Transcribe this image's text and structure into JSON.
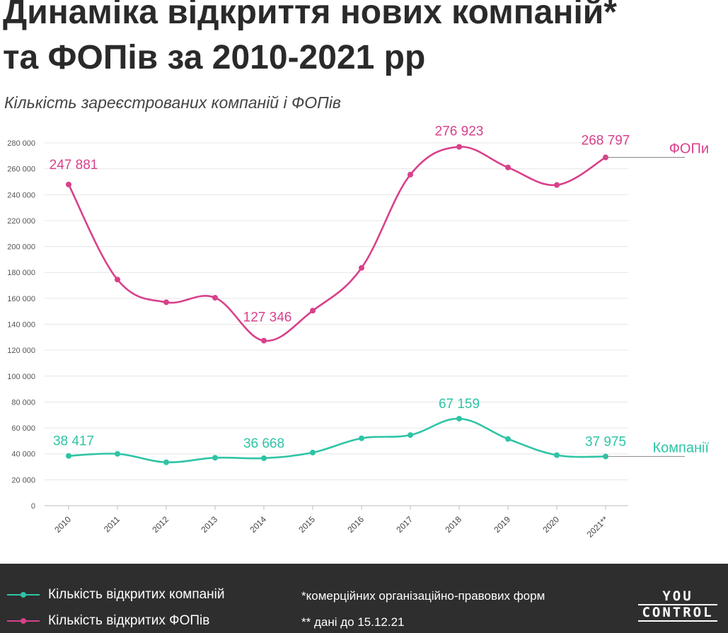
{
  "title_line1": "Динаміка відкриття нових компаній*",
  "title_line2": "та ФОПів за 2010-2021 рр",
  "subtitle": "Кількість зареєстрованих компаній і ФОПів",
  "colors": {
    "companies": "#2ec4a5",
    "fop": "#d9408b",
    "grid": "#e6e6e6",
    "footer_bg": "#2e2e2e"
  },
  "chart_data": {
    "type": "line",
    "categories": [
      "2010",
      "2011",
      "2012",
      "2013",
      "2014",
      "2015",
      "2016",
      "2017",
      "2018",
      "2019",
      "2020",
      "2021**"
    ],
    "ylim": [
      0,
      280000
    ],
    "y_ticks": [
      "0",
      "20 000",
      "40 000",
      "60 000",
      "80 000",
      "100 000",
      "120 000",
      "140 000",
      "160 000",
      "180 000",
      "200 000",
      "220 000",
      "240 000",
      "260 000",
      "280 000"
    ],
    "grid": true,
    "series": [
      {
        "name": "Компанії",
        "color": "#2ec4a5",
        "values": [
          38417,
          40000,
          33500,
          37000,
          36668,
          41000,
          52000,
          54500,
          67159,
          51500,
          39000,
          37975
        ],
        "labels": [
          {
            "index": 0,
            "text": "38 417"
          },
          {
            "index": 4,
            "text": "36 668"
          },
          {
            "index": 8,
            "text": "67 159"
          },
          {
            "index": 11,
            "text": "37 975"
          }
        ]
      },
      {
        "name": "ФОПи",
        "color": "#d9408b",
        "values": [
          247881,
          174500,
          157000,
          160500,
          127346,
          150500,
          183500,
          255500,
          276923,
          261000,
          247500,
          268797
        ],
        "labels": [
          {
            "index": 0,
            "text": "247 881"
          },
          {
            "index": 4,
            "text": "127 346"
          },
          {
            "index": 8,
            "text": "276 923"
          },
          {
            "index": 11,
            "text": "268 797"
          }
        ]
      }
    ]
  },
  "legend": {
    "companies": "Кількість відкритих компаній",
    "fop": "Кількість відкритих ФОПів"
  },
  "notes": {
    "note1": "*комерційних організаційно-правових форм",
    "note2": "** дані до 15.12.21"
  },
  "logo": {
    "top": "YOU",
    "bottom": "CONTROL"
  }
}
